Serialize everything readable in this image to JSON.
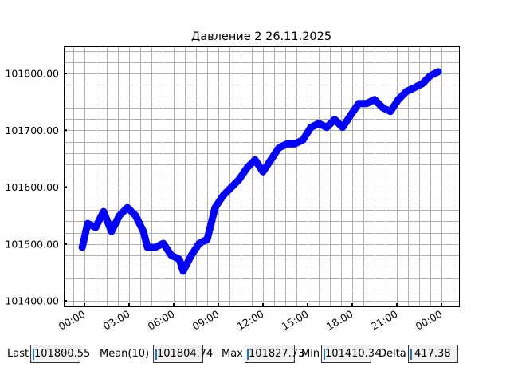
{
  "chart_data": {
    "type": "line",
    "title": "Давление 2 26.11.2025",
    "xlabel": "",
    "ylabel": "",
    "x_ticks": [
      "00:00",
      "03:00",
      "06:00",
      "09:00",
      "12:00",
      "15:00",
      "18:00",
      "21:00",
      "00:00"
    ],
    "y_ticks": [
      "101400.00",
      "101500.00",
      "101600.00",
      "101700.00",
      "101800.00"
    ],
    "ylim": [
      101390,
      101848
    ],
    "xlim_hours": [
      -0.7,
      25.2
    ],
    "grid": "major and minor",
    "series_color": "#0000ff",
    "x": [
      "00:00",
      "00:13",
      "00:45",
      "01:17",
      "01:49",
      "02:21",
      "02:53",
      "03:26",
      "03:58",
      "04:14",
      "04:46",
      "05:18",
      "05:50",
      "06:23",
      "06:38",
      "07:11",
      "07:43",
      "08:15",
      "08:47",
      "09:19",
      "09:51",
      "10:23",
      "10:56",
      "11:28",
      "12:00",
      "12:32",
      "13:04",
      "13:36",
      "14:08",
      "14:41",
      "15:13",
      "15:45",
      "16:17",
      "16:49",
      "17:21",
      "17:53",
      "18:26",
      "18:58",
      "19:30",
      "20:02",
      "20:34",
      "21:06",
      "21:38",
      "22:11",
      "22:43",
      "23:15",
      "23:47"
    ],
    "values": [
      101494,
      101536,
      101529,
      101557,
      101522,
      101550,
      101564,
      101550,
      101522,
      101494,
      101494,
      101501,
      101480,
      101473,
      101452,
      101480,
      101501,
      101508,
      101564,
      101585,
      101599,
      101613,
      101634,
      101648,
      101627,
      101648,
      101669,
      101676,
      101676,
      101683,
      101705,
      101712,
      101705,
      101719,
      101705,
      101726,
      101747,
      101747,
      101754,
      101740,
      101733,
      101754,
      101768,
      101775,
      101782,
      101796,
      101803
    ]
  },
  "stats": {
    "last_label": "Last",
    "last_value": "101800.55",
    "mean_label": "Mean(10)",
    "mean_value": "101804.74",
    "max_label": "Max",
    "max_value": "101827.73",
    "min_label": "Min",
    "min_value": "101410.34",
    "delta_label": "Delta",
    "delta_value": "417.38"
  }
}
